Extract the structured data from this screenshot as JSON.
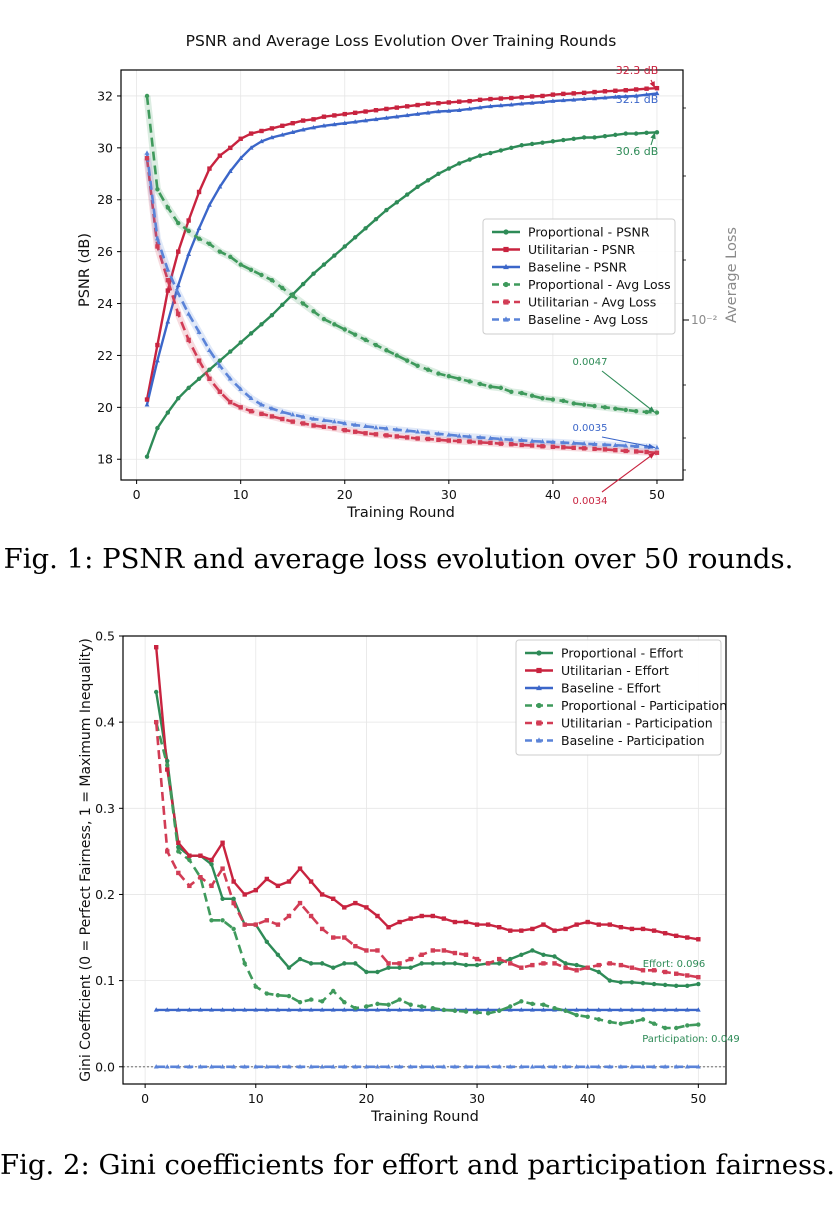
{
  "chart_data": [
    {
      "type": "line",
      "title": "PSNR and Average Loss Evolution Over Training Rounds",
      "xlabel": "Training Round",
      "ylabel": "PSNR (dB)",
      "y2label": "Average Loss",
      "xlim": [
        -1.5,
        52.5
      ],
      "ylim": [
        17.2,
        33.0
      ],
      "y2scale": "log",
      "y2ticks": [
        "10⁻²"
      ],
      "xticks": [
        0,
        10,
        20,
        30,
        40,
        50
      ],
      "yticks": [
        18,
        20,
        22,
        24,
        26,
        28,
        30,
        32
      ],
      "grid": true,
      "legend_position": "center-right",
      "x": [
        1,
        2,
        3,
        4,
        5,
        6,
        7,
        8,
        9,
        10,
        11,
        12,
        13,
        14,
        15,
        16,
        17,
        18,
        19,
        20,
        21,
        22,
        23,
        24,
        25,
        26,
        27,
        28,
        29,
        30,
        31,
        32,
        33,
        34,
        35,
        36,
        37,
        38,
        39,
        40,
        41,
        42,
        43,
        44,
        45,
        46,
        47,
        48,
        49,
        50
      ],
      "series": [
        {
          "name": "Proportional - PSNR",
          "axis": "left",
          "style": "solid",
          "color": "#2e8b57",
          "marker": "circle",
          "values": [
            18.1,
            19.2,
            19.8,
            20.35,
            20.75,
            21.1,
            21.45,
            21.8,
            22.15,
            22.5,
            22.85,
            23.2,
            23.55,
            23.95,
            24.35,
            24.75,
            25.15,
            25.5,
            25.85,
            26.2,
            26.55,
            26.9,
            27.25,
            27.6,
            27.9,
            28.2,
            28.5,
            28.75,
            29.0,
            29.2,
            29.4,
            29.55,
            29.7,
            29.8,
            29.9,
            30.0,
            30.1,
            30.15,
            30.2,
            30.25,
            30.3,
            30.35,
            30.4,
            30.4,
            30.45,
            30.5,
            30.55,
            30.55,
            30.58,
            30.6
          ]
        },
        {
          "name": "Utilitarian - PSNR",
          "axis": "left",
          "style": "solid",
          "color": "#c8233f",
          "marker": "square",
          "values": [
            20.3,
            22.4,
            24.5,
            26.0,
            27.2,
            28.3,
            29.2,
            29.7,
            30.0,
            30.35,
            30.55,
            30.65,
            30.75,
            30.85,
            30.95,
            31.05,
            31.1,
            31.2,
            31.25,
            31.3,
            31.35,
            31.4,
            31.45,
            31.5,
            31.55,
            31.6,
            31.65,
            31.7,
            31.72,
            31.75,
            31.78,
            31.8,
            31.85,
            31.88,
            31.9,
            31.92,
            31.95,
            31.98,
            32.0,
            32.05,
            32.08,
            32.1,
            32.12,
            32.15,
            32.18,
            32.2,
            32.22,
            32.25,
            32.28,
            32.3
          ]
        },
        {
          "name": "Baseline - PSNR",
          "axis": "left",
          "style": "solid",
          "color": "#3b66c9",
          "marker": "triangle",
          "values": [
            20.1,
            21.8,
            23.3,
            24.7,
            25.9,
            26.9,
            27.8,
            28.5,
            29.1,
            29.6,
            30.0,
            30.25,
            30.4,
            30.5,
            30.6,
            30.7,
            30.78,
            30.85,
            30.9,
            30.95,
            31.0,
            31.05,
            31.1,
            31.15,
            31.2,
            31.25,
            31.3,
            31.35,
            31.4,
            31.42,
            31.45,
            31.5,
            31.55,
            31.6,
            31.63,
            31.66,
            31.7,
            31.73,
            31.76,
            31.8,
            31.83,
            31.85,
            31.88,
            31.9,
            31.93,
            31.96,
            31.98,
            32.0,
            32.05,
            32.1
          ]
        },
        {
          "name": "Proportional - Avg Loss",
          "axis": "right",
          "style": "dashed",
          "color": "#3f9a5c",
          "marker": "circle",
          "values": [
            32.0,
            28.4,
            27.7,
            27.1,
            26.8,
            26.5,
            26.3,
            26.0,
            25.8,
            25.5,
            25.3,
            25.1,
            24.9,
            24.6,
            24.3,
            24.0,
            23.7,
            23.4,
            23.2,
            23.0,
            22.8,
            22.6,
            22.4,
            22.2,
            22.0,
            21.8,
            21.6,
            21.45,
            21.3,
            21.2,
            21.1,
            21.0,
            20.9,
            20.8,
            20.75,
            20.6,
            20.55,
            20.45,
            20.35,
            20.3,
            20.25,
            20.15,
            20.1,
            20.05,
            20.0,
            19.95,
            19.9,
            19.85,
            19.82,
            19.8
          ]
        },
        {
          "name": "Utilitarian - Avg Loss",
          "axis": "right",
          "style": "dashed",
          "color": "#d23c55",
          "marker": "square",
          "values": [
            29.6,
            26.2,
            24.9,
            23.6,
            22.6,
            21.8,
            21.1,
            20.6,
            20.2,
            20.0,
            19.85,
            19.75,
            19.65,
            19.55,
            19.45,
            19.38,
            19.3,
            19.25,
            19.2,
            19.12,
            19.06,
            19.0,
            18.96,
            18.92,
            18.88,
            18.84,
            18.8,
            18.78,
            18.75,
            18.72,
            18.7,
            18.68,
            18.65,
            18.63,
            18.6,
            18.58,
            18.55,
            18.53,
            18.5,
            18.48,
            18.46,
            18.44,
            18.42,
            18.4,
            18.38,
            18.35,
            18.32,
            18.3,
            18.28,
            18.25
          ]
        },
        {
          "name": "Baseline - Avg Loss",
          "axis": "right",
          "style": "dashed",
          "color": "#5a83d8",
          "marker": "triangle",
          "values": [
            29.8,
            26.5,
            25.3,
            24.4,
            23.6,
            22.9,
            22.2,
            21.6,
            21.1,
            20.7,
            20.35,
            20.1,
            19.95,
            19.82,
            19.72,
            19.63,
            19.55,
            19.5,
            19.45,
            19.38,
            19.32,
            19.27,
            19.22,
            19.18,
            19.14,
            19.1,
            19.06,
            19.02,
            18.98,
            18.94,
            18.9,
            18.87,
            18.84,
            18.81,
            18.78,
            18.75,
            18.73,
            18.7,
            18.68,
            18.66,
            18.64,
            18.62,
            18.6,
            18.58,
            18.56,
            18.54,
            18.52,
            18.5,
            18.48,
            18.45
          ]
        }
      ],
      "annotations": [
        {
          "text": "32.3 dB",
          "color": "#c8233f",
          "x": 50,
          "y": 32.3
        },
        {
          "text": "32.1 dB",
          "color": "#3b66c9",
          "x": 50,
          "y": 32.1
        },
        {
          "text": "30.6 dB",
          "color": "#2e8b57",
          "x": 50,
          "y": 30.6
        },
        {
          "text": "0.0047",
          "color": "#2e8b57",
          "x": 50,
          "y": 19.8
        },
        {
          "text": "0.0035",
          "color": "#3b66c9",
          "x": 50,
          "y": 18.45
        },
        {
          "text": "0.0034",
          "color": "#c8233f",
          "x": 50,
          "y": 18.25
        }
      ]
    },
    {
      "type": "line",
      "title": "",
      "xlabel": "Training Round",
      "ylabel": "Gini Coefficient (0 = Perfect Fairness, 1 = Maximum Inequality)",
      "xlim": [
        -2.0,
        52.5
      ],
      "ylim": [
        -0.02,
        0.5
      ],
      "xticks": [
        0,
        10,
        20,
        30,
        40,
        50
      ],
      "yticks": [
        0.0,
        0.1,
        0.2,
        0.3,
        0.4,
        0.5
      ],
      "grid": true,
      "legend_position": "top-right",
      "x": [
        1,
        2,
        3,
        4,
        5,
        6,
        7,
        8,
        9,
        10,
        11,
        12,
        13,
        14,
        15,
        16,
        17,
        18,
        19,
        20,
        21,
        22,
        23,
        24,
        25,
        26,
        27,
        28,
        29,
        30,
        31,
        32,
        33,
        34,
        35,
        36,
        37,
        38,
        39,
        40,
        41,
        42,
        43,
        44,
        45,
        46,
        47,
        48,
        49,
        50
      ],
      "series": [
        {
          "name": "Proportional - Effort",
          "style": "solid",
          "color": "#2e8b57",
          "marker": "circle",
          "values": [
            0.435,
            0.355,
            0.255,
            0.245,
            0.245,
            0.235,
            0.195,
            0.195,
            0.165,
            0.165,
            0.145,
            0.13,
            0.115,
            0.125,
            0.12,
            0.12,
            0.115,
            0.12,
            0.12,
            0.11,
            0.11,
            0.115,
            0.115,
            0.115,
            0.12,
            0.12,
            0.12,
            0.12,
            0.118,
            0.118,
            0.12,
            0.12,
            0.125,
            0.13,
            0.135,
            0.13,
            0.128,
            0.12,
            0.118,
            0.115,
            0.11,
            0.1,
            0.098,
            0.098,
            0.097,
            0.096,
            0.095,
            0.094,
            0.094,
            0.096
          ]
        },
        {
          "name": "Utilitarian - Effort",
          "style": "solid",
          "color": "#c8233f",
          "marker": "square",
          "values": [
            0.487,
            0.345,
            0.26,
            0.245,
            0.245,
            0.24,
            0.26,
            0.215,
            0.2,
            0.205,
            0.218,
            0.21,
            0.215,
            0.23,
            0.215,
            0.2,
            0.195,
            0.185,
            0.19,
            0.185,
            0.175,
            0.162,
            0.168,
            0.172,
            0.175,
            0.175,
            0.172,
            0.168,
            0.168,
            0.165,
            0.165,
            0.162,
            0.158,
            0.158,
            0.16,
            0.165,
            0.158,
            0.16,
            0.165,
            0.168,
            0.165,
            0.165,
            0.162,
            0.16,
            0.16,
            0.158,
            0.155,
            0.152,
            0.15,
            0.148
          ]
        },
        {
          "name": "Baseline - Effort",
          "style": "solid",
          "color": "#3b66c9",
          "marker": "triangle",
          "values": [
            0.066,
            0.066,
            0.066,
            0.066,
            0.066,
            0.066,
            0.066,
            0.066,
            0.066,
            0.066,
            0.066,
            0.066,
            0.066,
            0.066,
            0.066,
            0.066,
            0.066,
            0.066,
            0.066,
            0.066,
            0.066,
            0.066,
            0.066,
            0.066,
            0.066,
            0.066,
            0.066,
            0.066,
            0.066,
            0.066,
            0.066,
            0.066,
            0.066,
            0.066,
            0.066,
            0.066,
            0.066,
            0.066,
            0.066,
            0.066,
            0.066,
            0.066,
            0.066,
            0.066,
            0.066,
            0.066,
            0.066,
            0.066,
            0.066,
            0.066
          ]
        },
        {
          "name": "Proportional - Participation",
          "style": "dashed",
          "color": "#3f9a5c",
          "marker": "circle",
          "values": [
            0.4,
            0.35,
            0.25,
            0.24,
            0.22,
            0.17,
            0.17,
            0.16,
            0.12,
            0.093,
            0.085,
            0.083,
            0.082,
            0.075,
            0.078,
            0.076,
            0.088,
            0.075,
            0.068,
            0.07,
            0.073,
            0.072,
            0.078,
            0.072,
            0.07,
            0.068,
            0.066,
            0.065,
            0.064,
            0.063,
            0.062,
            0.065,
            0.07,
            0.076,
            0.073,
            0.072,
            0.068,
            0.065,
            0.06,
            0.058,
            0.055,
            0.052,
            0.05,
            0.052,
            0.055,
            0.05,
            0.045,
            0.045,
            0.048,
            0.049
          ]
        },
        {
          "name": "Utilitarian - Participation",
          "style": "dashed",
          "color": "#d23c55",
          "marker": "square",
          "values": [
            0.4,
            0.25,
            0.225,
            0.21,
            0.22,
            0.21,
            0.23,
            0.19,
            0.165,
            0.165,
            0.17,
            0.165,
            0.175,
            0.19,
            0.175,
            0.16,
            0.15,
            0.15,
            0.14,
            0.135,
            0.135,
            0.12,
            0.12,
            0.125,
            0.13,
            0.135,
            0.135,
            0.132,
            0.13,
            0.125,
            0.12,
            0.125,
            0.12,
            0.115,
            0.118,
            0.12,
            0.12,
            0.115,
            0.112,
            0.115,
            0.118,
            0.12,
            0.118,
            0.115,
            0.112,
            0.112,
            0.11,
            0.108,
            0.106,
            0.104
          ]
        },
        {
          "name": "Baseline - Participation",
          "style": "dashed",
          "color": "#5a83d8",
          "marker": "triangle",
          "values": [
            0.0,
            0.0,
            0.0,
            0.0,
            0.0,
            0.0,
            0.0,
            0.0,
            0.0,
            0.0,
            0.0,
            0.0,
            0.0,
            0.0,
            0.0,
            0.0,
            0.0,
            0.0,
            0.0,
            0.0,
            0.0,
            0.0,
            0.0,
            0.0,
            0.0,
            0.0,
            0.0,
            0.0,
            0.0,
            0.0,
            0.0,
            0.0,
            0.0,
            0.0,
            0.0,
            0.0,
            0.0,
            0.0,
            0.0,
            0.0,
            0.0,
            0.0,
            0.0,
            0.0,
            0.0,
            0.0,
            0.0,
            0.0,
            0.0,
            0.0
          ]
        }
      ],
      "annotations": [
        {
          "text": "Effort: 0.096",
          "color": "#2e8b57",
          "x": 50,
          "y": 0.096
        },
        {
          "text": "Participation: 0.049",
          "color": "#2e8b57",
          "x": 50,
          "y": 0.049
        }
      ]
    }
  ],
  "captions": {
    "fig1": "Fig. 1: PSNR and average loss evolution over 50 rounds.",
    "fig2": "Fig. 2: Gini coefficients for effort and participation fairness."
  }
}
